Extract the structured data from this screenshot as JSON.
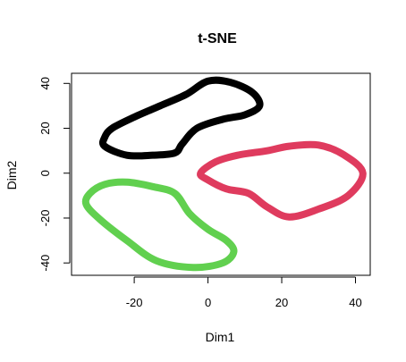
{
  "chart_data": {
    "type": "line",
    "title": "t-SNE",
    "xlabel": "Dim1",
    "ylabel": "Dim2",
    "xlim": [
      -37,
      44
    ],
    "ylim": [
      -45.5,
      44.5
    ],
    "xticks": [
      -20,
      0,
      20,
      40
    ],
    "yticks": [
      -40,
      -20,
      0,
      20,
      40
    ],
    "grid": false,
    "series": [
      {
        "color": "#000000",
        "closed": true,
        "points": [
          [
            -28,
            16
          ],
          [
            -26,
            20
          ],
          [
            -20,
            25
          ],
          [
            -13,
            30
          ],
          [
            -6,
            35
          ],
          [
            0,
            41
          ],
          [
            6,
            40.5
          ],
          [
            12,
            36
          ],
          [
            14,
            30
          ],
          [
            10,
            26
          ],
          [
            4,
            24
          ],
          [
            -3,
            20
          ],
          [
            -7,
            13
          ],
          [
            -9,
            9
          ],
          [
            -15,
            8
          ],
          [
            -22,
            8
          ],
          [
            -28,
            12
          ]
        ]
      },
      {
        "color": "#DF3B5E",
        "closed": true,
        "points": [
          [
            -2,
            0
          ],
          [
            2,
            5
          ],
          [
            8,
            8
          ],
          [
            16,
            10
          ],
          [
            22,
            12
          ],
          [
            30,
            12.5
          ],
          [
            37,
            8
          ],
          [
            42,
            0
          ],
          [
            38,
            -10
          ],
          [
            30,
            -16
          ],
          [
            22,
            -19.5
          ],
          [
            16,
            -15
          ],
          [
            11,
            -9
          ],
          [
            5,
            -7
          ],
          [
            0,
            -3
          ]
        ]
      },
      {
        "color": "#61D04F",
        "closed": true,
        "points": [
          [
            -32,
            -9
          ],
          [
            -28,
            -5
          ],
          [
            -22,
            -4
          ],
          [
            -15,
            -6
          ],
          [
            -9,
            -9
          ],
          [
            -5,
            -18
          ],
          [
            0,
            -25
          ],
          [
            5,
            -30
          ],
          [
            7,
            -35
          ],
          [
            4,
            -40
          ],
          [
            -4,
            -42
          ],
          [
            -14,
            -39
          ],
          [
            -22,
            -30
          ],
          [
            -29,
            -21
          ],
          [
            -33,
            -14
          ]
        ]
      }
    ]
  }
}
